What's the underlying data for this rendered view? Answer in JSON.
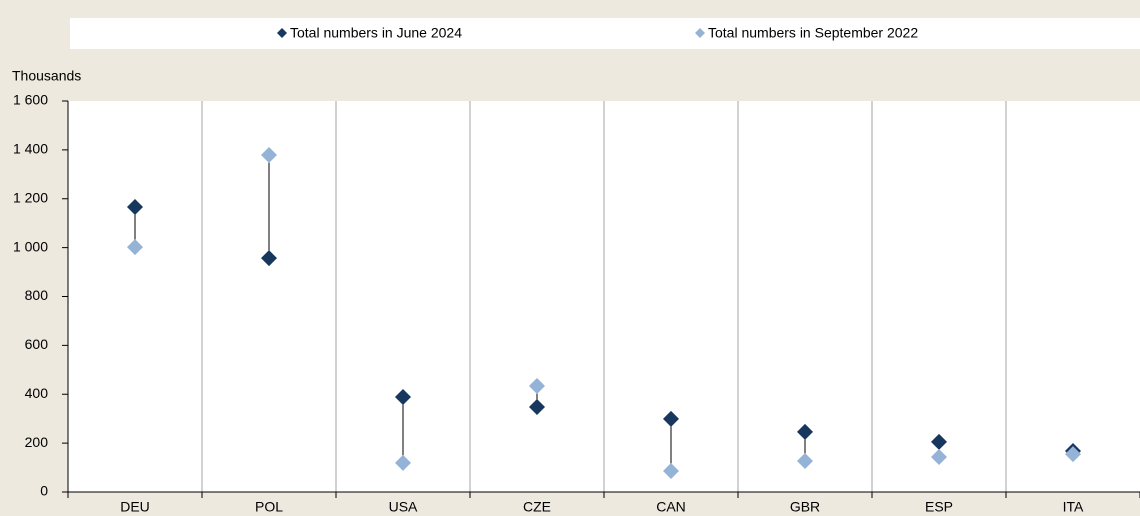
{
  "chart_data": {
    "type": "dot",
    "y_label": "Thousands",
    "categories": [
      "DEU",
      "POL",
      "USA",
      "CZE",
      "CAN",
      "GBR",
      "ESP",
      "ITA"
    ],
    "series": [
      {
        "name": "Total numbers in June 2024",
        "color": "#17375e",
        "values": [
          1166,
          957,
          389,
          348,
          299,
          246,
          205,
          168
        ]
      },
      {
        "name": "Total numbers in September 2022",
        "color": "#95b3d7",
        "values": [
          1002,
          1379,
          119,
          434,
          86,
          127,
          143,
          155
        ]
      }
    ],
    "ylim": [
      0,
      1600
    ],
    "yticks": [
      0,
      200,
      400,
      600,
      800,
      {
        "value": 1000,
        "label": "1 000"
      },
      {
        "value": 1200,
        "label": "1 200"
      },
      {
        "value": 1400,
        "label": "1 400"
      },
      {
        "value": 1600,
        "label": "1 600"
      }
    ],
    "legend": "top",
    "grid": true
  }
}
